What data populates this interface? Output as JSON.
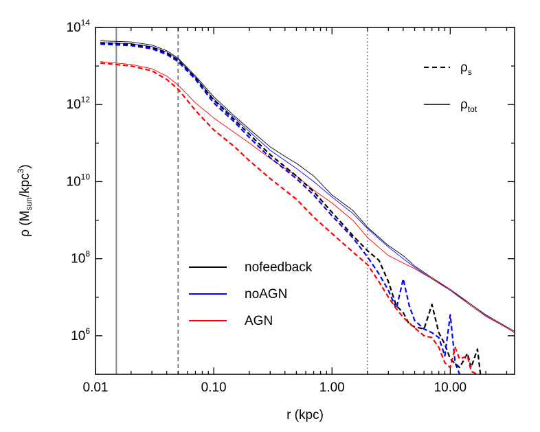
{
  "chart_data": {
    "type": "line",
    "xlabel": "r (kpc)",
    "ylabel": {
      "pre": "ρ (M",
      "sub": "sun",
      "mid": "/kpc",
      "sup": "3",
      "post": ")"
    },
    "xscale": "log",
    "yscale": "log",
    "xlim": [
      0.01,
      35
    ],
    "ylim": [
      100000,
      100000000000000
    ],
    "x_ticks": [
      {
        "value": 0.01,
        "label": "0.01"
      },
      {
        "value": 0.1,
        "label": "0.10"
      },
      {
        "value": 1,
        "label": "1.00"
      },
      {
        "value": 10,
        "label": "10.00"
      }
    ],
    "y_ticks": [
      {
        "value": 1000000,
        "base": "10",
        "exp": "6"
      },
      {
        "value": 100000000,
        "base": "10",
        "exp": "8"
      },
      {
        "value": 10000000000,
        "base": "10",
        "exp": "10"
      },
      {
        "value": 1000000000000,
        "base": "10",
        "exp": "12"
      },
      {
        "value": 100000000000000,
        "base": "10",
        "exp": "14"
      }
    ],
    "vlines": [
      {
        "x": 0.015,
        "style": "solid",
        "color": "#888888"
      },
      {
        "x": 0.05,
        "style": "dashed",
        "color": "#777777"
      },
      {
        "x": 2.0,
        "style": "dotted",
        "color": "#888888"
      }
    ],
    "line_style_legend": [
      {
        "style": "dashed",
        "label_main": "ρ",
        "label_sub": "s"
      },
      {
        "style": "solid",
        "label_main": "ρ",
        "label_sub": "tot"
      }
    ],
    "color_legend": [
      {
        "label": "nofeedback",
        "color": "#000000"
      },
      {
        "label": "noAGN",
        "color": "#0000ff"
      },
      {
        "label": "AGN",
        "color": "#ff0000"
      }
    ],
    "series": [
      {
        "name": "nofeedback",
        "kind": "rho_tot",
        "color": "#000000",
        "points": [
          [
            0.011,
            45000000000000.0
          ],
          [
            0.02,
            42000000000000.0
          ],
          [
            0.03,
            35000000000000.0
          ],
          [
            0.04,
            25000000000000.0
          ],
          [
            0.05,
            16000000000000.0
          ],
          [
            0.07,
            5500000000000.0
          ],
          [
            0.1,
            1600000000000.0
          ],
          [
            0.15,
            500000000000.0
          ],
          [
            0.2,
            230000000000.0
          ],
          [
            0.3,
            80000000000.0
          ],
          [
            0.4,
            45000000000.0
          ],
          [
            0.5,
            30000000000.0
          ],
          [
            0.7,
            14000000000.0
          ],
          [
            1,
            4500000000.0
          ],
          [
            1.5,
            1800000000.0
          ],
          [
            2,
            650000000.0
          ],
          [
            3,
            220000000.0
          ],
          [
            4,
            120000000.0
          ],
          [
            5,
            65000000.0
          ],
          [
            7,
            32000000.0
          ],
          [
            10,
            16000000.0
          ],
          [
            15,
            6500000.0
          ],
          [
            20,
            3500000.0
          ],
          [
            30,
            1700000.0
          ],
          [
            35,
            1300000.0
          ]
        ]
      },
      {
        "name": "noAGN",
        "kind": "rho_tot",
        "color": "#0000ff",
        "points": [
          [
            0.011,
            40000000000000.0
          ],
          [
            0.02,
            38000000000000.0
          ],
          [
            0.03,
            32000000000000.0
          ],
          [
            0.04,
            23000000000000.0
          ],
          [
            0.05,
            15000000000000.0
          ],
          [
            0.07,
            5000000000000.0
          ],
          [
            0.1,
            1400000000000.0
          ],
          [
            0.15,
            450000000000.0
          ],
          [
            0.2,
            200000000000.0
          ],
          [
            0.3,
            65000000000.0
          ],
          [
            0.5,
            22000000000.0
          ],
          [
            0.7,
            10000000000.0
          ],
          [
            1,
            4000000000.0
          ],
          [
            1.5,
            1500000000.0
          ],
          [
            2,
            600000000.0
          ],
          [
            3,
            200000000.0
          ],
          [
            4,
            100000000.0
          ],
          [
            5,
            60000000.0
          ],
          [
            7,
            30000000.0
          ],
          [
            10,
            15000000.0
          ],
          [
            15,
            6000000.0
          ],
          [
            20,
            3200000.0
          ],
          [
            30,
            1600000.0
          ],
          [
            35,
            1200000.0
          ]
        ]
      },
      {
        "name": "AGN",
        "kind": "rho_tot",
        "color": "#ff0000",
        "points": [
          [
            0.011,
            13000000000000.0
          ],
          [
            0.02,
            11000000000000.0
          ],
          [
            0.03,
            8500000000000.0
          ],
          [
            0.04,
            5500000000000.0
          ],
          [
            0.05,
            3200000000000.0
          ],
          [
            0.07,
            1100000000000.0
          ],
          [
            0.1,
            450000000000.0
          ],
          [
            0.2,
            100000000000.0
          ],
          [
            0.3,
            40000000000.0
          ],
          [
            0.5,
            14000000000.0
          ],
          [
            0.7,
            6000000000.0
          ],
          [
            1,
            2800000000.0
          ],
          [
            1.5,
            1000000000.0
          ],
          [
            2,
            350000000.0
          ],
          [
            3,
            120000000.0
          ],
          [
            5,
            55000000.0
          ],
          [
            7,
            30000000.0
          ],
          [
            10,
            16000000.0
          ],
          [
            15,
            6000000.0
          ],
          [
            20,
            3300000.0
          ],
          [
            30,
            1600000.0
          ],
          [
            35,
            1200000.0
          ]
        ]
      },
      {
        "name": "nofeedback",
        "kind": "rho_s",
        "color": "#000000",
        "points": [
          [
            0.011,
            40000000000000.0
          ],
          [
            0.02,
            37000000000000.0
          ],
          [
            0.03,
            30000000000000.0
          ],
          [
            0.04,
            22000000000000.0
          ],
          [
            0.05,
            14000000000000.0
          ],
          [
            0.07,
            5000000000000.0
          ],
          [
            0.1,
            1300000000000.0
          ],
          [
            0.15,
            400000000000.0
          ],
          [
            0.2,
            170000000000.0
          ],
          [
            0.3,
            50000000000.0
          ],
          [
            0.5,
            14000000000.0
          ],
          [
            0.7,
            5500000000.0
          ],
          [
            1,
            1600000000.0
          ],
          [
            1.5,
            400000000.0
          ],
          [
            2,
            160000000.0
          ],
          [
            2.5,
            90000000.0
          ],
          [
            3,
            25000000.0
          ],
          [
            3.5,
            6000000.0
          ],
          [
            4,
            4000000.0
          ],
          [
            4.5,
            2000000.0
          ],
          [
            5,
            1700000.0
          ],
          [
            6,
            1500000.0
          ],
          [
            7,
            6500000.0
          ],
          [
            8,
            1200000.0
          ],
          [
            9,
            600000.0
          ],
          [
            10,
            250000.0
          ],
          [
            12,
            150000.0
          ],
          [
            14,
            350000.0
          ],
          [
            15,
            150000.0
          ],
          [
            17,
            450000.0
          ],
          [
            18,
            100000.0
          ]
        ]
      },
      {
        "name": "noAGN",
        "kind": "rho_s",
        "color": "#0000ff",
        "points": [
          [
            0.011,
            37000000000000.0
          ],
          [
            0.02,
            34000000000000.0
          ],
          [
            0.03,
            28000000000000.0
          ],
          [
            0.04,
            20000000000000.0
          ],
          [
            0.05,
            13000000000000.0
          ],
          [
            0.07,
            4500000000000.0
          ],
          [
            0.1,
            1100000000000.0
          ],
          [
            0.15,
            350000000000.0
          ],
          [
            0.2,
            140000000000.0
          ],
          [
            0.3,
            42000000000.0
          ],
          [
            0.5,
            12000000000.0
          ],
          [
            0.7,
            4500000000.0
          ],
          [
            1,
            1300000000.0
          ],
          [
            1.5,
            350000000.0
          ],
          [
            2,
            110000000.0
          ],
          [
            2.5,
            40000000.0
          ],
          [
            3,
            15000000.0
          ],
          [
            3.5,
            5000000.0
          ],
          [
            4,
            30000000.0
          ],
          [
            4.5,
            6000000.0
          ],
          [
            5,
            2500000.0
          ],
          [
            6,
            1500000.0
          ],
          [
            7,
            1200000.0
          ],
          [
            8,
            900000.0
          ],
          [
            9,
            300000.0
          ],
          [
            10,
            3500000.0
          ],
          [
            11,
            200000.0
          ],
          [
            12,
            100000.0
          ]
        ]
      },
      {
        "name": "AGN",
        "kind": "rho_s",
        "color": "#ff0000",
        "points": [
          [
            0.011,
            12000000000000.0
          ],
          [
            0.02,
            10000000000000.0
          ],
          [
            0.03,
            7500000000000.0
          ],
          [
            0.04,
            4500000000000.0
          ],
          [
            0.05,
            2500000000000.0
          ],
          [
            0.07,
            700000000000.0
          ],
          [
            0.1,
            220000000000.0
          ],
          [
            0.15,
            80000000000.0
          ],
          [
            0.2,
            35000000000.0
          ],
          [
            0.3,
            12000000000.0
          ],
          [
            0.5,
            3500000000.0
          ],
          [
            0.7,
            1200000000.0
          ],
          [
            1,
            450000000.0
          ],
          [
            1.5,
            150000000.0
          ],
          [
            2,
            70000000.0
          ],
          [
            2.5,
            25000000.0
          ],
          [
            3,
            10000000.0
          ],
          [
            3.5,
            5000000.0
          ],
          [
            4,
            3000000.0
          ],
          [
            5,
            1600000.0
          ],
          [
            6,
            1000000.0
          ],
          [
            7,
            900000.0
          ],
          [
            8,
            500000.0
          ],
          [
            9,
            200000.0
          ],
          [
            10,
            150000.0
          ],
          [
            11,
            500000.0
          ],
          [
            12,
            250000.0
          ],
          [
            14,
            300000.0
          ],
          [
            15,
            120000.0
          ],
          [
            17,
            100000.0
          ]
        ]
      }
    ]
  }
}
